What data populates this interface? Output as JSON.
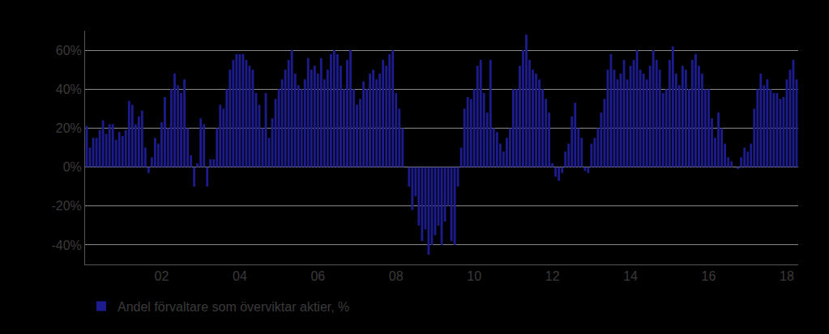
{
  "chart_data": {
    "type": "bar",
    "categories": [
      null,
      null,
      null,
      null,
      null,
      null,
      null,
      null,
      null,
      null,
      null,
      null,
      null,
      null,
      null,
      null,
      null,
      null,
      null,
      null,
      null,
      null,
      null,
      "02",
      null,
      null,
      null,
      null,
      null,
      null,
      null,
      null,
      null,
      null,
      null,
      null,
      null,
      null,
      null,
      null,
      null,
      null,
      null,
      null,
      null,
      null,
      null,
      "04",
      null,
      null,
      null,
      null,
      null,
      null,
      null,
      null,
      null,
      null,
      null,
      null,
      null,
      null,
      null,
      null,
      null,
      null,
      null,
      null,
      null,
      null,
      null,
      "06",
      null,
      null,
      null,
      null,
      null,
      null,
      null,
      null,
      null,
      null,
      null,
      null,
      null,
      null,
      null,
      null,
      null,
      null,
      null,
      null,
      null,
      null,
      null,
      "08",
      null,
      null,
      null,
      null,
      null,
      null,
      null,
      null,
      null,
      null,
      null,
      null,
      null,
      null,
      null,
      null,
      null,
      null,
      null,
      null,
      null,
      null,
      null,
      "10",
      null,
      null,
      null,
      null,
      null,
      null,
      null,
      null,
      null,
      null,
      null,
      null,
      null,
      null,
      null,
      null,
      null,
      null,
      null,
      null,
      null,
      null,
      null,
      "12",
      null,
      null,
      null,
      null,
      null,
      null,
      null,
      null,
      null,
      null,
      null,
      null,
      null,
      null,
      null,
      null,
      null,
      null,
      null,
      null,
      null,
      null,
      null,
      "14",
      null,
      null,
      null,
      null,
      null,
      null,
      null,
      null,
      null,
      null,
      null,
      null,
      null,
      null,
      null,
      null,
      null,
      null,
      null,
      null,
      null,
      null,
      null,
      "16",
      null,
      null,
      null,
      null,
      null,
      null,
      null,
      null,
      null,
      null,
      null,
      null,
      null,
      null,
      null,
      null,
      null,
      null,
      null,
      null,
      null,
      null,
      null,
      "18",
      null,
      null,
      null
    ],
    "series": [
      {
        "name": "Andel förvaltare som överviktar aktier, %",
        "color": "#1c1c8f",
        "values": [
          21,
          10,
          15,
          15,
          19,
          24,
          17,
          22,
          22,
          14,
          18,
          16,
          19,
          34,
          32,
          22,
          26,
          29,
          10,
          -3,
          5,
          15,
          12,
          23,
          36,
          20,
          40,
          48,
          42,
          38,
          45,
          20,
          6,
          -10,
          2,
          25,
          22,
          -10,
          4,
          4,
          20,
          32,
          30,
          40,
          50,
          55,
          58,
          58,
          58,
          55,
          52,
          50,
          38,
          32,
          20,
          38,
          15,
          25,
          35,
          40,
          45,
          50,
          55,
          60,
          48,
          42,
          40,
          45,
          56,
          50,
          52,
          48,
          56,
          45,
          50,
          58,
          60,
          58,
          52,
          40,
          55,
          60,
          40,
          32,
          35,
          44,
          40,
          48,
          50,
          45,
          48,
          55,
          52,
          58,
          60,
          38,
          30,
          20,
          0,
          -10,
          -22,
          -15,
          -30,
          -38,
          -32,
          -45,
          -40,
          -35,
          -30,
          -40,
          -28,
          -20,
          -38,
          -40,
          -10,
          10,
          30,
          36,
          35,
          40,
          52,
          55,
          38,
          28,
          55,
          20,
          18,
          12,
          8,
          15,
          20,
          40,
          40,
          52,
          60,
          68,
          55,
          50,
          48,
          45,
          40,
          35,
          28,
          2,
          -5,
          -7,
          -3,
          8,
          12,
          26,
          33,
          20,
          15,
          -2,
          -3,
          12,
          15,
          20,
          28,
          35,
          50,
          58,
          50,
          45,
          48,
          55,
          45,
          52,
          55,
          60,
          50,
          48,
          45,
          52,
          60,
          55,
          50,
          38,
          40,
          55,
          62,
          48,
          42,
          52,
          50,
          40,
          55,
          58,
          52,
          48,
          40,
          40,
          25,
          15,
          28,
          20,
          12,
          5,
          3,
          0,
          -1,
          5,
          10,
          8,
          12,
          30,
          40,
          48,
          42,
          45,
          40,
          38,
          38,
          35,
          36,
          45,
          50,
          55,
          45
        ]
      }
    ],
    "ylim": [
      -50,
      70
    ],
    "yticks": [
      {
        "value": -40,
        "label": "-40%"
      },
      {
        "value": -20,
        "label": "-20%"
      },
      {
        "value": 0,
        "label": "0%"
      },
      {
        "value": 20,
        "label": "20%"
      },
      {
        "value": 40,
        "label": "40%"
      },
      {
        "value": 60,
        "label": "60%"
      }
    ],
    "grid": true,
    "legend": "bottom"
  }
}
